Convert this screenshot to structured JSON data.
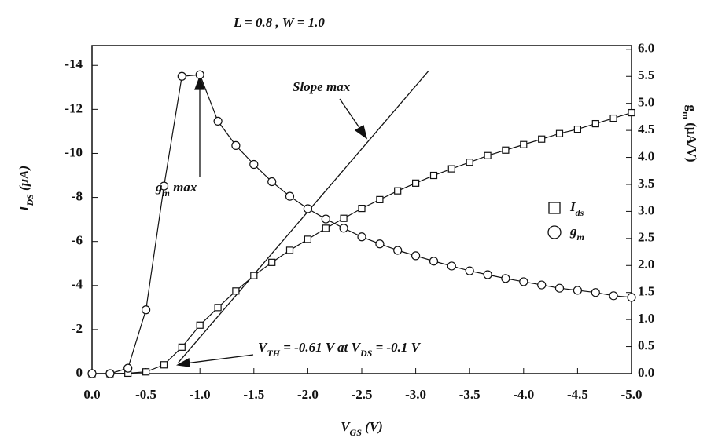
{
  "chart_data": {
    "type": "line",
    "title": "L = 0.8 , W = 1.0",
    "x_label": [
      {
        "text": "V"
      },
      {
        "text": "GS",
        "sub": true
      },
      {
        "text": " (V)"
      }
    ],
    "y_label": [
      {
        "text": "I"
      },
      {
        "text": "DS",
        "sub": true
      },
      {
        "text": " (μA)"
      }
    ],
    "y2_label": [
      {
        "text": "g"
      },
      {
        "text": "m",
        "sub": true
      },
      {
        "text": " (μA/V)"
      }
    ],
    "xlim": [
      0,
      -5
    ],
    "xticks": [
      {
        "value": 0,
        "label": "0.0"
      },
      -0.5,
      {
        "value": -1,
        "label": "-1.0"
      },
      -1.5,
      {
        "value": -2,
        "label": "-2.0"
      },
      -2.5,
      {
        "value": -3,
        "label": "-3.0"
      },
      -3.5,
      {
        "value": -4,
        "label": "-4.0"
      },
      -4.5,
      {
        "value": -5,
        "label": "-5.0"
      }
    ],
    "ylim": [
      0,
      -14.9
    ],
    "yticks": [
      0,
      -2,
      -4,
      -6,
      -8,
      -10,
      -12,
      -14
    ],
    "y2lim": [
      0,
      6.07
    ],
    "y2ticks": [
      {
        "value": 0,
        "label": "0.0"
      },
      0.5,
      {
        "value": 1,
        "label": "1.0"
      },
      1.5,
      {
        "value": 2,
        "label": "2.0"
      },
      2.5,
      {
        "value": 3,
        "label": "3.0"
      },
      3.5,
      {
        "value": 4,
        "label": "4.0"
      },
      4.5,
      {
        "value": 5,
        "label": "5.0"
      },
      5.5,
      {
        "value": 6,
        "label": "6.0"
      }
    ],
    "x": [
      0,
      -0.167,
      -0.333,
      -0.5,
      -0.667,
      -0.833,
      -1.0,
      -1.167,
      -1.333,
      -1.5,
      -1.667,
      -1.833,
      -2.0,
      -2.167,
      -2.333,
      -2.5,
      -2.667,
      -2.833,
      -3.0,
      -3.167,
      -3.333,
      -3.5,
      -3.667,
      -3.833,
      -4.0,
      -4.167,
      -4.333,
      -4.5,
      -4.667,
      -4.833,
      -5.0
    ],
    "series": [
      {
        "name": [
          {
            "text": "I"
          },
          {
            "text": "ds",
            "sub": true
          }
        ],
        "marker": "square",
        "color": "#111111",
        "axis": "y",
        "values": [
          0,
          0,
          -0.02,
          -0.08,
          -0.4,
          -1.2,
          -2.2,
          -3.0,
          -3.75,
          -4.45,
          -5.05,
          -5.6,
          -6.1,
          -6.6,
          -7.05,
          -7.5,
          -7.9,
          -8.3,
          -8.65,
          -9.0,
          -9.3,
          -9.6,
          -9.9,
          -10.15,
          -10.4,
          -10.65,
          -10.9,
          -11.1,
          -11.35,
          -11.6,
          -11.85
        ]
      },
      {
        "name": [
          {
            "text": "g"
          },
          {
            "text": "m",
            "sub": true
          }
        ],
        "marker": "circle",
        "color": "#111111",
        "axis": "y2",
        "values": [
          0,
          0,
          0.1,
          1.18,
          3.47,
          5.5,
          5.53,
          4.67,
          4.22,
          3.87,
          3.55,
          3.28,
          3.05,
          2.86,
          2.69,
          2.53,
          2.4,
          2.28,
          2.18,
          2.08,
          1.99,
          1.9,
          1.83,
          1.76,
          1.7,
          1.64,
          1.58,
          1.54,
          1.5,
          1.44,
          1.41
        ]
      }
    ],
    "tangent_line": {
      "x": [
        -0.8,
        -3.12
      ],
      "y": [
        -0.5,
        -13.75
      ]
    },
    "annotations": [
      [
        {
          "text": "Slope max"
        }
      ],
      [
        {
          "text": "g"
        },
        {
          "text": "m",
          "sub": true
        },
        {
          "text": " max"
        }
      ],
      [
        {
          "text": "V"
        },
        {
          "text": "TH",
          "sub": true
        },
        {
          "text": " = -0.61 V at V"
        },
        {
          "text": "DS",
          "sub": true
        },
        {
          "text": " = -0.1 V"
        }
      ]
    ]
  }
}
